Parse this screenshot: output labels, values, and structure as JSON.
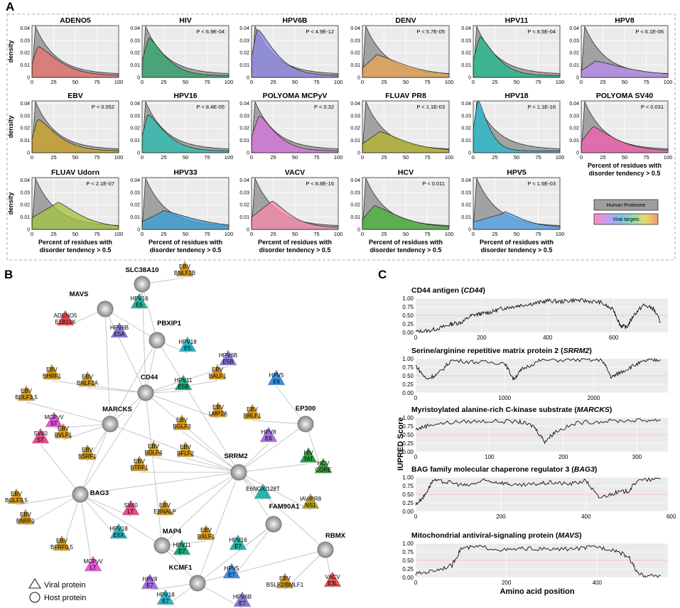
{
  "panels": {
    "a": "A",
    "b": "B",
    "c": "C"
  },
  "colors": {
    "human": "#9e9e9e",
    "panel_bg": "#ebebeb",
    "host_node": "#b5b5b5"
  },
  "chart_data": [
    {
      "type": "area",
      "panel": "A",
      "ylabel": "density",
      "xlabel_line1": "Percent of residues with",
      "xlabel_line2": "disorder tendency > 0.5",
      "x_ticks": [
        "0",
        "25",
        "50",
        "75",
        "100"
      ],
      "y_ticks": [
        "0",
        "0.01",
        "0.02",
        "0.03",
        "0.04"
      ],
      "xlim": [
        0,
        100
      ],
      "ylim": [
        0,
        0.042
      ],
      "legend": [
        {
          "label": "Human Proteome",
          "color": "#9e9e9e"
        },
        {
          "label": "Viral targets",
          "color": "rainbow"
        }
      ],
      "human_curve": {
        "peak_x": 4,
        "peak_y": 0.039,
        "decay": 0.042
      },
      "subplots": [
        {
          "name": "ADENO5",
          "p": "",
          "color": "#e8736f",
          "peak_x": 6,
          "peak_y": 0.024,
          "spread": 32
        },
        {
          "name": "HIV",
          "p": "P < 6.9E-04",
          "color": "#2fa56a",
          "peak_x": 7,
          "peak_y": 0.031,
          "spread": 26
        },
        {
          "name": "HPV6B",
          "p": "P < 4.9E-12",
          "color": "#8b86e0",
          "peak_x": 6,
          "peak_y": 0.038,
          "spread": 28
        },
        {
          "name": "DENV",
          "p": "P < 5.7E-05",
          "color": "#e6a455",
          "peak_x": 15,
          "peak_y": 0.017,
          "spread": 45
        },
        {
          "name": "HPV11",
          "p": "P < 8.5E-04",
          "color": "#22b88a",
          "peak_x": 7,
          "peak_y": 0.032,
          "spread": 25
        },
        {
          "name": "HPV8",
          "p": "P < 6.1E-06",
          "color": "#b68cec",
          "peak_x": 14,
          "peak_y": 0.012,
          "spread": 50
        },
        {
          "name": "EBV",
          "p": "P < 0.052",
          "color": "#c9a227",
          "peak_x": 6,
          "peak_y": 0.026,
          "spread": 30
        },
        {
          "name": "HPV16",
          "p": "P < 8.4E-05",
          "color": "#2bbdb0",
          "peak_x": 6,
          "peak_y": 0.03,
          "spread": 27
        },
        {
          "name": "POLYOMA MCPyV",
          "p": "P < 0.32",
          "color": "#d575dd",
          "peak_x": 8,
          "peak_y": 0.029,
          "spread": 26
        },
        {
          "name": "FLUAV PR8",
          "p": "P < 1.1E-03",
          "color": "#b3b22e",
          "peak_x": 18,
          "peak_y": 0.016,
          "spread": 40
        },
        {
          "name": "HPV18",
          "p": "P < 1.1E-16",
          "color": "#27b9cf",
          "peak_x": 5,
          "peak_y": 0.042,
          "spread": 16
        },
        {
          "name": "POLYOMA SV40",
          "p": "P < 0.031",
          "color": "#ef5fae",
          "peak_x": 12,
          "peak_y": 0.02,
          "spread": 35
        },
        {
          "name": "FLUAV Udorn",
          "p": "P < 2.1E-07",
          "color": "#a3c243",
          "peak_x": 28,
          "peak_y": 0.021,
          "spread": 35
        },
        {
          "name": "HPV33",
          "p": "",
          "color": "#3a9fd6",
          "peak_x": 22,
          "peak_y": 0.014,
          "spread": 50
        },
        {
          "name": "VACV",
          "p": "P < 8.8E-16",
          "color": "#f58aa8",
          "peak_x": 22,
          "peak_y": 0.022,
          "spread": 28
        },
        {
          "name": "HCV",
          "p": "P < 0.011",
          "color": "#4caf3c",
          "peak_x": 12,
          "peak_y": 0.018,
          "spread": 40
        },
        {
          "name": "HPV5",
          "p": "P < 1.6E-03",
          "color": "#58a6ec",
          "peak_x": 35,
          "peak_y": 0.013,
          "spread": 30
        }
      ]
    },
    {
      "type": "network",
      "panel": "B",
      "legend": [
        {
          "shape": "triangle",
          "label": "Viral protein"
        },
        {
          "shape": "circle",
          "label": "Host protein"
        }
      ],
      "host_nodes": [
        "SLC38A10",
        "MAVS",
        "PBXIP1",
        "CD44",
        "MARCKS",
        "EP300",
        "SRRM2",
        "BAG3",
        "MAP4",
        "FAM90A1",
        "RBMX",
        "KCMF1"
      ],
      "viral_nodes": [
        {
          "l1": "EBV",
          "l2": "BNLF2B",
          "color": "#d2981c"
        },
        {
          "l1": "HPV16",
          "l2": "E5",
          "color": "#22b39a"
        },
        {
          "l1": "HPV6B",
          "l2": "E5A",
          "color": "#8a76d6"
        },
        {
          "l1": "ADENO5",
          "l2": "E1B19K",
          "color": "#e5504d"
        },
        {
          "l1": "HPV18",
          "l2": "E5",
          "color": "#23b3c2"
        },
        {
          "l1": "HPV6B",
          "l2": "E5B",
          "color": "#8a76d6"
        },
        {
          "l1": "EBV",
          "l2": "BHRF1",
          "color": "#d2981c"
        },
        {
          "l1": "EBV",
          "l2": "BNLF2A",
          "color": "#d2981c"
        },
        {
          "l1": "EBV",
          "l2": "BALF1",
          "color": "#d2981c"
        },
        {
          "l1": "HPV11",
          "l2": "E5B",
          "color": "#20a87a"
        },
        {
          "l1": "HPV5",
          "l2": "E6",
          "color": "#3a8ee0"
        },
        {
          "l1": "EBV",
          "l2": "BDLF3.5",
          "color": "#d2981c"
        },
        {
          "l1": "EBV",
          "l2": "LMP2A",
          "color": "#d2981c"
        },
        {
          "l1": "EBV",
          "l2": "BRLF1",
          "color": "#d2981c"
        },
        {
          "l1": "MCPyV",
          "l2": "ST",
          "color": "#e455d8"
        },
        {
          "l1": "EBV",
          "l2": "BVLF1",
          "color": "#d2981c"
        },
        {
          "l1": "EBV",
          "l2": "BGLF3",
          "color": "#d2981c"
        },
        {
          "l1": "HPV8",
          "l2": "E6",
          "color": "#a66ee0"
        },
        {
          "l1": "SV40",
          "l2": "ST",
          "color": "#e84a8c"
        },
        {
          "l1": "EBV",
          "l2": "BSRF1",
          "color": "#d2981c"
        },
        {
          "l1": "EBV",
          "l2": "BDLF4",
          "color": "#d2981c"
        },
        {
          "l1": "EBV",
          "l2": "BFLF2",
          "color": "#d2981c"
        },
        {
          "l1": "HIV",
          "l2": "TAT",
          "color": "#2e9e44"
        },
        {
          "l1": "HCV",
          "l2": "CORE",
          "color": "#3a9a3a"
        },
        {
          "l1": "EBV",
          "l2": "BTRF1",
          "color": "#d2981c"
        },
        {
          "l1": "EBV",
          "l2": "BGLF3.5",
          "color": "#d2981c"
        },
        {
          "l1": "SV40",
          "l2": "LT",
          "color": "#e84a8c"
        },
        {
          "l1": "EBV",
          "l2": "EBNALP",
          "color": "#d2981c"
        },
        {
          "l1": "E6NOXI128T",
          "l2": "",
          "color": "#26b5a8"
        },
        {
          "l1": "IAV/PR8",
          "l2": "NS1",
          "color": "#b9a41c"
        },
        {
          "l1": "EBV",
          "l2": "BNRF1",
          "color": "#d2981c"
        },
        {
          "l1": "HPV18",
          "l2": "E6X",
          "color": "#23b3c2"
        },
        {
          "l1": "EBV",
          "l2": "BXLF1",
          "color": "#d2981c"
        },
        {
          "l1": "HPV16",
          "l2": "E7",
          "color": "#22b39a"
        },
        {
          "l1": "EBV",
          "l2": "BFRF0.5",
          "color": "#d2981c"
        },
        {
          "l1": "MCPyV",
          "l2": "LT",
          "color": "#e455d8"
        },
        {
          "l1": "HPV11",
          "l2": "E7",
          "color": "#20a87a"
        },
        {
          "l1": "HPV5",
          "l2": "E7",
          "color": "#3a8ee0"
        },
        {
          "l1": "HPV8",
          "l2": "E7",
          "color": "#a66ee0"
        },
        {
          "l1": "VACV",
          "l2": "E3L",
          "color": "#e5504d"
        },
        {
          "l1": "EBV",
          "l2": "BSLF2/BMLF1",
          "color": "#d2981c"
        },
        {
          "l1": "HPV18",
          "l2": "E7",
          "color": "#23b3c2"
        },
        {
          "l1": "HPV6B",
          "l2": "E7",
          "color": "#8a76d6"
        }
      ]
    },
    {
      "type": "line",
      "panel": "C",
      "ylabel": "IUPRED Score",
      "xlabel": "Amino acid position",
      "y_ticks": [
        "0.00",
        "0.25",
        "0.50",
        "0.75",
        "1.00"
      ],
      "threshold": 0.5,
      "proteins": [
        {
          "title_pre": "CD44 antigen (",
          "gene": "CD44",
          "title_post": ")",
          "length": 742,
          "x_ticks": [
            0,
            200,
            400,
            600
          ],
          "profile": [
            [
              0,
              0.02
            ],
            [
              40,
              0.05
            ],
            [
              80,
              0.15
            ],
            [
              110,
              0.25
            ],
            [
              140,
              0.3
            ],
            [
              170,
              0.5
            ],
            [
              200,
              0.55
            ],
            [
              230,
              0.6
            ],
            [
              260,
              0.7
            ],
            [
              290,
              0.75
            ],
            [
              320,
              0.8
            ],
            [
              360,
              0.85
            ],
            [
              400,
              0.93
            ],
            [
              440,
              0.9
            ],
            [
              480,
              0.95
            ],
            [
              520,
              0.92
            ],
            [
              560,
              0.88
            ],
            [
              600,
              0.65
            ],
            [
              620,
              0.2
            ],
            [
              640,
              0.15
            ],
            [
              660,
              0.5
            ],
            [
              690,
              0.8
            ],
            [
              720,
              0.7
            ],
            [
              742,
              0.3
            ]
          ]
        },
        {
          "title_pre": "Serine/arginine repetitive matrix protein 2 (",
          "gene": "SRRM2",
          "title_post": ")",
          "length": 2752,
          "x_ticks": [
            0,
            1000,
            2000
          ],
          "profile": [
            [
              0,
              0.8
            ],
            [
              120,
              0.4
            ],
            [
              250,
              0.55
            ],
            [
              400,
              0.95
            ],
            [
              700,
              0.9
            ],
            [
              1000,
              0.88
            ],
            [
              1100,
              0.4
            ],
            [
              1200,
              0.7
            ],
            [
              1400,
              0.95
            ],
            [
              1800,
              0.97
            ],
            [
              2100,
              0.95
            ],
            [
              2200,
              0.45
            ],
            [
              2300,
              0.6
            ],
            [
              2450,
              0.8
            ],
            [
              2600,
              0.95
            ],
            [
              2752,
              0.97
            ]
          ]
        },
        {
          "title_pre": "Myristoylated alanine-rich C-kinase substrate (",
          "gene": "MARCKS",
          "title_post": ")",
          "length": 332,
          "x_ticks": [
            0,
            100,
            200,
            300
          ],
          "profile": [
            [
              0,
              0.65
            ],
            [
              20,
              0.8
            ],
            [
              60,
              0.88
            ],
            [
              100,
              0.9
            ],
            [
              140,
              0.88
            ],
            [
              160,
              0.75
            ],
            [
              175,
              0.3
            ],
            [
              190,
              0.6
            ],
            [
              220,
              0.85
            ],
            [
              260,
              0.9
            ],
            [
              300,
              0.92
            ],
            [
              332,
              0.93
            ]
          ]
        },
        {
          "title_pre": "BAG family molecular chaperone regulator 3 (",
          "gene": "BAG3",
          "title_post": ")",
          "length": 575,
          "x_ticks": [
            0,
            200,
            400,
            600
          ],
          "profile": [
            [
              0,
              0.2
            ],
            [
              20,
              0.45
            ],
            [
              40,
              0.9
            ],
            [
              80,
              0.85
            ],
            [
              120,
              0.75
            ],
            [
              160,
              0.9
            ],
            [
              200,
              0.85
            ],
            [
              240,
              0.75
            ],
            [
              280,
              0.8
            ],
            [
              320,
              0.85
            ],
            [
              360,
              0.8
            ],
            [
              400,
              0.9
            ],
            [
              430,
              0.4
            ],
            [
              470,
              0.55
            ],
            [
              500,
              0.6
            ],
            [
              520,
              0.9
            ],
            [
              575,
              0.95
            ]
          ]
        },
        {
          "title_pre": "Mitochondrial antiviral-signaling protein (",
          "gene": "MAVS",
          "title_post": ")",
          "length": 540,
          "x_ticks": [
            0,
            200,
            400
          ],
          "profile": [
            [
              0,
              0.1
            ],
            [
              40,
              0.2
            ],
            [
              80,
              0.35
            ],
            [
              100,
              0.85
            ],
            [
              140,
              0.9
            ],
            [
              200,
              0.8
            ],
            [
              240,
              0.85
            ],
            [
              300,
              0.82
            ],
            [
              360,
              0.85
            ],
            [
              400,
              0.9
            ],
            [
              440,
              0.8
            ],
            [
              470,
              0.6
            ],
            [
              490,
              0.1
            ],
            [
              510,
              0.05
            ],
            [
              540,
              0.05
            ]
          ]
        }
      ]
    }
  ]
}
